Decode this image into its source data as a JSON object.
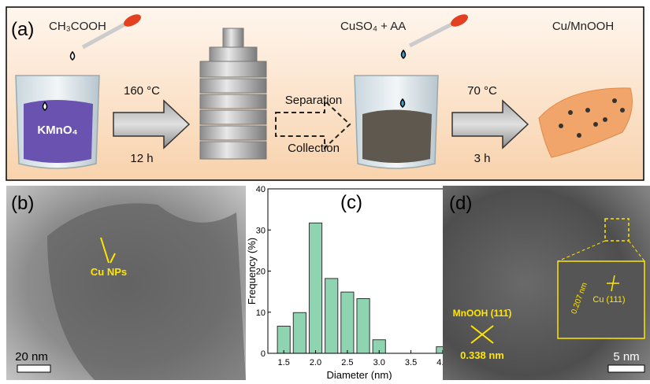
{
  "panel_a": {
    "label": "(a)",
    "reagent_1": "CH₃COOH",
    "beaker_1": "KMnO₄",
    "step_1_top": "160 °C",
    "step_1_bottom": "12 h",
    "step_2_top": "Separation",
    "step_2_bottom": "Collection",
    "reagent_2": "CuSO₄ + AA",
    "step_3_top": "70 °C",
    "step_3_bottom": "3 h",
    "product": "Cu/MnOOH"
  },
  "panel_b": {
    "label": "(b)",
    "annotation": "Cu NPs",
    "scale_bar": "20 nm"
  },
  "panel_d": {
    "label": "(d)",
    "phase_1": "MnOOH (111̄)",
    "spacing_1": "0.338 nm",
    "spacing_2": "0.207 nm",
    "phase_2": "Cu (111)",
    "scale_bar": "5 nm"
  },
  "chart_data": {
    "type": "histogram",
    "label": "(c)",
    "x_label": "Diameter (nm)",
    "y_label": "Frequency (%)",
    "bins": [
      1.375,
      1.625,
      1.875,
      2.125,
      2.375,
      2.625,
      2.875,
      3.125,
      3.375,
      3.625,
      3.875,
      4.125
    ],
    "values": [
      6.6,
      9.9,
      31.7,
      18.2,
      14.9,
      13.3,
      3.3,
      0,
      0,
      0,
      1.6
    ],
    "color": "#8fd4b0",
    "xlim": [
      1.25,
      4.125
    ],
    "ylim": [
      0,
      40
    ],
    "xticks": [
      1.5,
      {
        "value": 2,
        "label": "2.0"
      },
      2.5,
      {
        "value": 3,
        "label": "3.0"
      },
      3.5,
      {
        "value": 4,
        "label": "4.0"
      }
    ],
    "yticks": [
      0,
      10,
      20,
      30,
      40
    ]
  }
}
